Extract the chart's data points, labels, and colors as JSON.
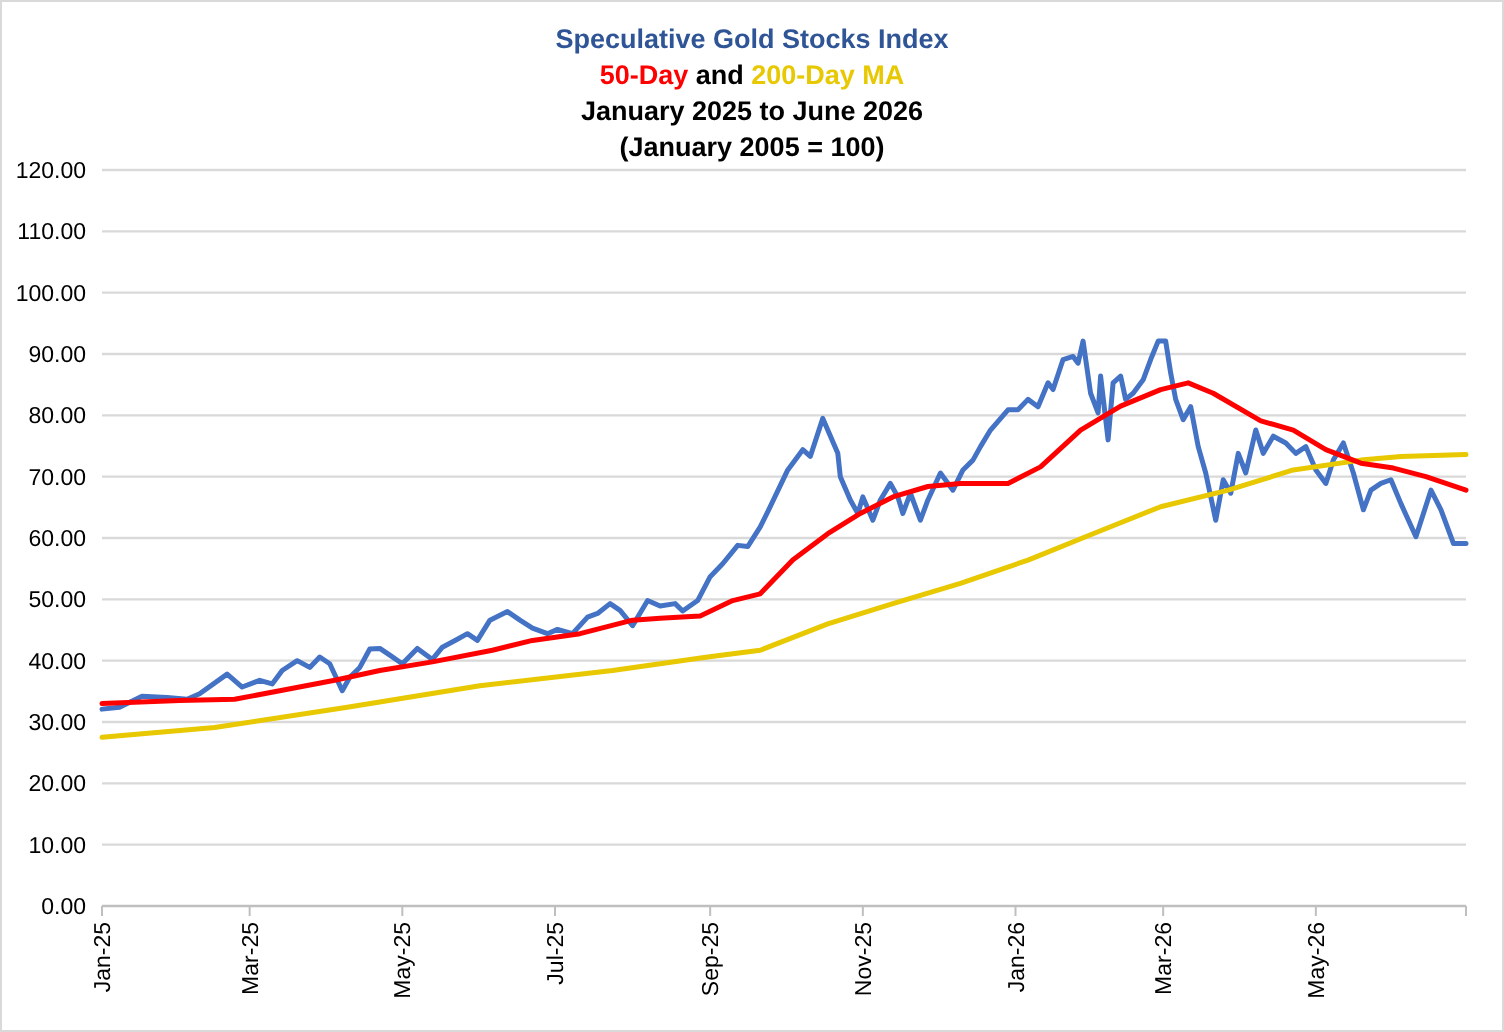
{
  "chart_data": {
    "type": "line",
    "title": "Speculative Gold Stocks Index",
    "subtitle": "and\nJanuary 2025 to June 2026\n(January 2005 = 100)",
    "series": [
      {
        "color": "#4472c4",
        "x": [
          "2025-01-01",
          "2025-01-08",
          "2025-01-17",
          "2025-01-27",
          "2025-02-04",
          "2025-02-09",
          "2025-02-20",
          "2025-02-26",
          "2025-03-05",
          "2025-03-10",
          "2025-03-14",
          "2025-03-20",
          "2025-03-25",
          "2025-03-29",
          "2025-04-02",
          "2025-04-07",
          "2025-04-10",
          "2025-04-14",
          "2025-04-18",
          "2025-04-22",
          "2025-04-26",
          "2025-05-01",
          "2025-05-07",
          "2025-05-13",
          "2025-05-17",
          "2025-05-23",
          "2025-05-27",
          "2025-05-31",
          "2025-06-05",
          "2025-06-12",
          "2025-06-17",
          "2025-06-22",
          "2025-06-28",
          "2025-07-02",
          "2025-07-08",
          "2025-07-14",
          "2025-07-18",
          "2025-07-23",
          "2025-07-27",
          "2025-08-01",
          "2025-08-07",
          "2025-08-12",
          "2025-08-18",
          "2025-08-21",
          "2025-08-27",
          "2025-09-01",
          "2025-09-06",
          "2025-09-12",
          "2025-09-16",
          "2025-09-21",
          "2025-09-25",
          "2025-10-02",
          "2025-10-08",
          "2025-10-11",
          "2025-10-16",
          "2025-10-22",
          "2025-10-23",
          "2025-10-27",
          "2025-10-30",
          "2025-11-01",
          "2025-11-05",
          "2025-11-08",
          "2025-11-12",
          "2025-11-15",
          "2025-11-17",
          "2025-11-20",
          "2025-11-24",
          "2025-11-27",
          "2025-12-02",
          "2025-12-07",
          "2025-12-11",
          "2025-12-15",
          "2025-12-18",
          "2025-12-22",
          "2025-12-29",
          "2026-01-02",
          "2026-01-06",
          "2026-01-10",
          "2026-01-14",
          "2026-01-16",
          "2026-01-20",
          "2026-01-24",
          "2026-01-26",
          "2026-01-28",
          "2026-01-31",
          "2026-02-03",
          "2026-02-04",
          "2026-02-07",
          "2026-02-09",
          "2026-02-12",
          "2026-02-14",
          "2026-02-17",
          "2026-02-21",
          "2026-02-24",
          "2026-02-27",
          "2026-03-02",
          "2026-03-04",
          "2026-03-06",
          "2026-03-09",
          "2026-03-12",
          "2026-03-15",
          "2026-03-18",
          "2026-03-22",
          "2026-03-25",
          "2026-03-28",
          "2026-03-31",
          "2026-04-03",
          "2026-04-07",
          "2026-04-10",
          "2026-04-14",
          "2026-04-19",
          "2026-04-23",
          "2026-04-27",
          "2026-05-01",
          "2026-05-05",
          "2026-05-08",
          "2026-05-12",
          "2026-05-16",
          "2026-05-20",
          "2026-05-23",
          "2026-05-27",
          "2026-05-31",
          "2026-06-04",
          "2026-06-10",
          "2026-06-16",
          "2026-06-20",
          "2026-06-25",
          "2026-06-30"
        ],
        "values": [
          32.1,
          32.4,
          34.2,
          34.0,
          33.7,
          34.6,
          37.8,
          35.7,
          36.8,
          36.2,
          38.4,
          40.0,
          38.9,
          40.6,
          39.5,
          35.1,
          37.3,
          38.9,
          41.9,
          42.0,
          40.9,
          39.5,
          42.0,
          40.2,
          42.2,
          43.5,
          44.4,
          43.3,
          46.6,
          48.0,
          46.6,
          45.3,
          44.4,
          45.1,
          44.4,
          47.1,
          47.7,
          49.3,
          48.2,
          45.7,
          49.8,
          48.9,
          49.3,
          48.1,
          49.8,
          53.7,
          55.8,
          58.8,
          58.6,
          61.8,
          65.1,
          71.1,
          74.4,
          73.3,
          79.5,
          73.8,
          70.0,
          66.2,
          64.0,
          66.7,
          62.9,
          66.2,
          68.9,
          66.7,
          64.0,
          67.3,
          62.9,
          66.2,
          70.6,
          67.8,
          71.1,
          72.7,
          74.9,
          77.6,
          80.9,
          80.9,
          82.6,
          81.4,
          85.3,
          84.2,
          89.1,
          89.6,
          88.5,
          92.1,
          83.6,
          80.4,
          86.4,
          76.0,
          85.3,
          86.4,
          82.6,
          83.6,
          85.8,
          89.1,
          92.1,
          92.1,
          86.9,
          82.6,
          79.3,
          81.4,
          74.9,
          70.6,
          62.9,
          69.5,
          67.3,
          73.8,
          70.6,
          77.6,
          73.8,
          76.6,
          75.5,
          73.8,
          74.9,
          71.1,
          68.9,
          72.7,
          75.5,
          70.6,
          64.6,
          67.8,
          68.9,
          69.5,
          65.6,
          60.2,
          67.8,
          64.6,
          59.1,
          59.1
        ]
      },
      {
        "name": "200-Day MA",
        "color": "#e8c800",
        "x": [
          "2025-01-01",
          "2025-02-15",
          "2025-04-09",
          "2025-06-01",
          "2025-07-24",
          "2025-08-31",
          "2025-09-21",
          "2025-10-18",
          "2025-11-13",
          "2025-12-10",
          "2026-01-06",
          "2026-02-01",
          "2026-02-28",
          "2026-03-27",
          "2026-04-22",
          "2026-05-19",
          "2026-06-04",
          "2026-06-30"
        ],
        "values": [
          27.5,
          29.1,
          32.4,
          35.9,
          38.4,
          40.6,
          41.7,
          46.0,
          49.3,
          52.6,
          56.4,
          60.7,
          65.1,
          67.8,
          71.1,
          72.7,
          73.3,
          73.6
        ]
      },
      {
        "name": "50-Day",
        "color": "#ff0000",
        "x": [
          "2025-01-01",
          "2025-02-01",
          "2025-02-23",
          "2025-03-13",
          "2025-04-04",
          "2025-04-22",
          "2025-05-13",
          "2025-06-06",
          "2025-06-22",
          "2025-07-11",
          "2025-08-01",
          "2025-08-12",
          "2025-08-28",
          "2025-09-10",
          "2025-09-21",
          "2025-10-04",
          "2025-10-18",
          "2025-10-31",
          "2025-11-13",
          "2025-11-27",
          "2025-12-10",
          "2025-12-29",
          "2026-01-11",
          "2026-01-27",
          "2026-02-12",
          "2026-02-28",
          "2026-03-11",
          "2026-03-21",
          "2026-04-09",
          "2026-04-22",
          "2026-05-05",
          "2026-05-19",
          "2026-06-01",
          "2026-06-14",
          "2026-06-30"
        ],
        "values": [
          33.0,
          33.5,
          33.7,
          35.1,
          36.8,
          38.4,
          39.8,
          41.7,
          43.3,
          44.4,
          46.6,
          46.9,
          47.3,
          49.8,
          50.9,
          56.4,
          60.7,
          64.0,
          66.7,
          68.4,
          68.9,
          68.9,
          71.6,
          77.6,
          81.5,
          84.2,
          85.3,
          83.6,
          79.1,
          77.6,
          74.4,
          72.2,
          71.4,
          70.0,
          67.8
        ]
      }
    ],
    "xlim": [
      "2025-01-01",
      "2026-06-30"
    ],
    "xticks": [
      {
        "value": "2025-01-01",
        "label": "Jan-25"
      },
      {
        "value": "2025-03-01",
        "label": "Mar-25"
      },
      {
        "value": "2025-05-01",
        "label": "May-25"
      },
      {
        "value": "2025-07-01",
        "label": "Jul-25"
      },
      {
        "value": "2025-09-01",
        "label": "Sep-25"
      },
      {
        "value": "2025-11-01",
        "label": "Nov-25"
      },
      {
        "value": "2026-01-01",
        "label": "Jan-26"
      },
      {
        "value": "2026-03-01",
        "label": "Mar-26"
      },
      {
        "value": "2026-05-01",
        "label": "May-26"
      }
    ],
    "ylim": [
      0,
      120
    ],
    "yticks": [
      {
        "value": 0,
        "label": "0.00"
      },
      {
        "value": 10,
        "label": "10.00"
      },
      {
        "value": 20,
        "label": "20.00"
      },
      {
        "value": 30,
        "label": "30.00"
      },
      {
        "value": 40,
        "label": "40.00"
      },
      {
        "value": 50,
        "label": "50.00"
      },
      {
        "value": 60,
        "label": "60.00"
      },
      {
        "value": 70,
        "label": "70.00"
      },
      {
        "value": 80,
        "label": "80.00"
      },
      {
        "value": 90,
        "label": "90.00"
      },
      {
        "value": 100,
        "label": "100.00"
      },
      {
        "value": 110,
        "label": "110.00"
      },
      {
        "value": 120,
        "label": "120.00"
      }
    ],
    "grid": "y",
    "legend": false
  }
}
